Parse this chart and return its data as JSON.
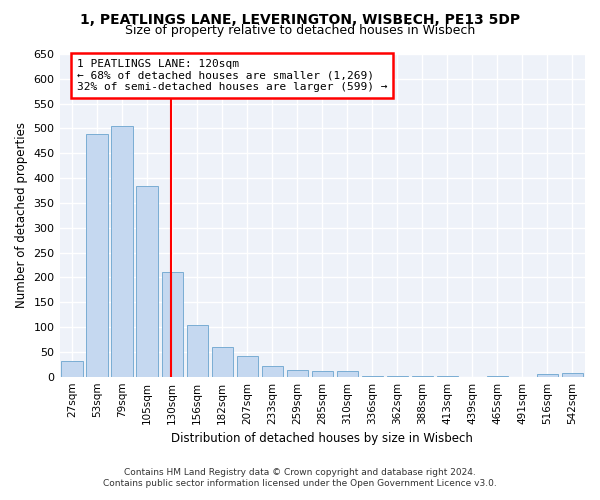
{
  "title_line1": "1, PEATLINGS LANE, LEVERINGTON, WISBECH, PE13 5DP",
  "title_line2": "Size of property relative to detached houses in Wisbech",
  "xlabel": "Distribution of detached houses by size in Wisbech",
  "ylabel": "Number of detached properties",
  "bar_color": "#c5d8f0",
  "bar_edge_color": "#7aadd4",
  "categories": [
    "27sqm",
    "53sqm",
    "79sqm",
    "105sqm",
    "130sqm",
    "156sqm",
    "182sqm",
    "207sqm",
    "233sqm",
    "259sqm",
    "285sqm",
    "310sqm",
    "336sqm",
    "362sqm",
    "388sqm",
    "413sqm",
    "439sqm",
    "465sqm",
    "491sqm",
    "516sqm",
    "542sqm"
  ],
  "values": [
    32,
    488,
    505,
    385,
    210,
    105,
    60,
    42,
    22,
    13,
    11,
    11,
    2,
    2,
    2,
    1,
    0,
    1,
    0,
    5,
    7
  ],
  "vline_x": 3.97,
  "annotation_title": "1 PEATLINGS LANE: 120sqm",
  "annotation_line1": "← 68% of detached houses are smaller (1,269)",
  "annotation_line2": "32% of semi-detached houses are larger (599) →",
  "ylim": [
    0,
    650
  ],
  "yticks": [
    0,
    50,
    100,
    150,
    200,
    250,
    300,
    350,
    400,
    450,
    500,
    550,
    600,
    650
  ],
  "footnote1": "Contains HM Land Registry data © Crown copyright and database right 2024.",
  "footnote2": "Contains public sector information licensed under the Open Government Licence v3.0.",
  "bg_color": "#eef2f9",
  "grid_color": "white",
  "title1_fontsize": 10,
  "title2_fontsize": 9
}
